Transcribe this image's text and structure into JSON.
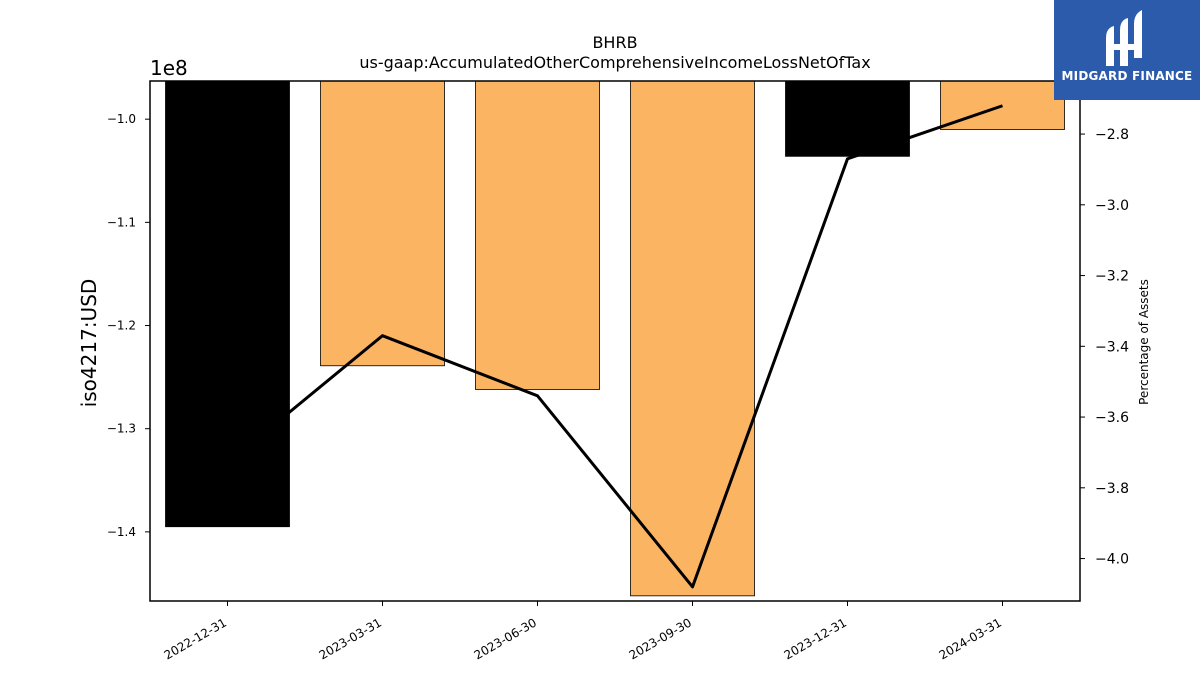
{
  "chart_data": {
    "type": "bar",
    "title": "BHRB",
    "subtitle": "us-gaap:AccumulatedOtherComprehensiveIncomeLossNetOfTax",
    "ylabel": "iso4217:USD",
    "y2label": "Percentage of Assets",
    "offset_label": "1e8",
    "categories": [
      "2022-12-31",
      "2023-03-31",
      "2023-06-30",
      "2023-09-30",
      "2023-12-31",
      "2024-03-31"
    ],
    "values": [
      -139.5,
      -123.9,
      -126.2,
      -146.2,
      -103.6,
      -101.0
    ],
    "bar_colors": [
      "#000000",
      "#fbb462",
      "#fbb462",
      "#fbb462",
      "#000000",
      "#fbb462"
    ],
    "line_series": {
      "name": "Percentage of Assets",
      "values": [
        -3.73,
        -3.37,
        -3.54,
        -4.08,
        -2.87,
        -2.72
      ]
    },
    "ylim": [
      -146.7,
      -96.3
    ],
    "y2lim": [
      -4.12,
      -2.65
    ],
    "yticks": [
      -1.0,
      -1.1,
      -1.2,
      -1.3,
      -1.4
    ],
    "y2ticks": [
      -2.8,
      -3.0,
      -3.2,
      -3.4,
      -3.6,
      -3.8,
      -4.0
    ],
    "grid": false
  },
  "logo": {
    "text": "MIDGARD FINANCE",
    "bg_color": "#2c5bab"
  }
}
